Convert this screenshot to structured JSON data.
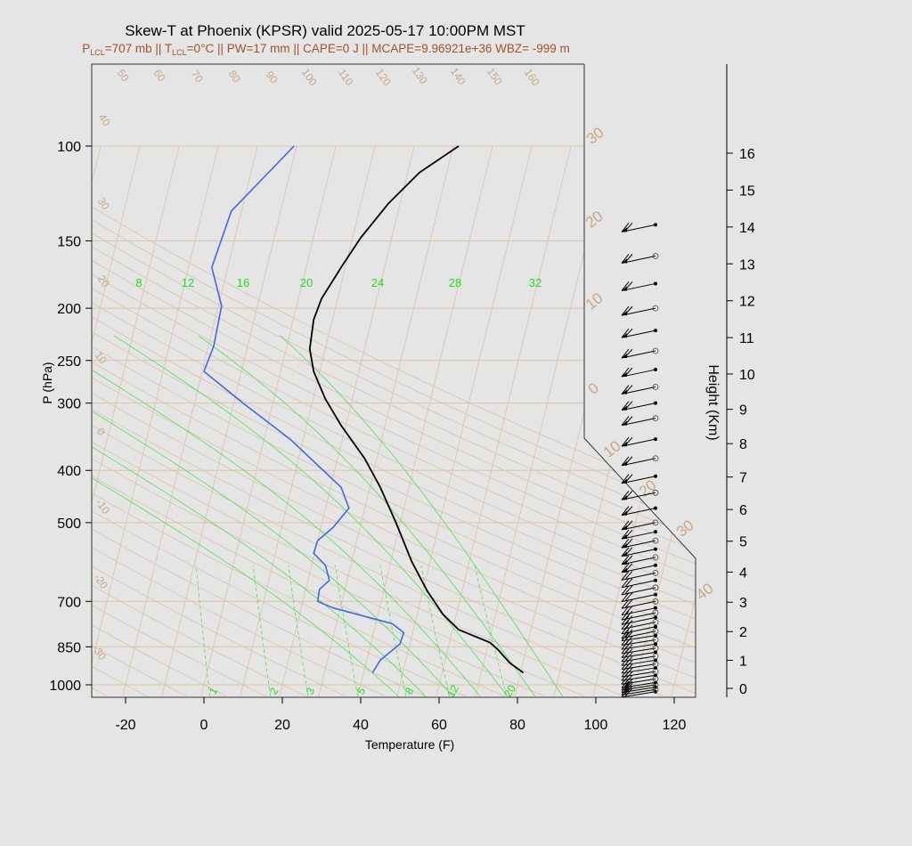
{
  "title": "Skew-T at Phoenix (KPSR) valid 2025-05-17 10:00PM MST",
  "subtitle": {
    "plcl_sym": "P",
    "plcl_sub": "LCL",
    "plcl_val": "=707 mb || ",
    "tlcl_sym": "T",
    "tlcl_sub": "LCL",
    "tlcl_val": "=0°C || PW=17 mm || CAPE=0 J || MCAPE=9.96921e+36 WBZ= -999 m"
  },
  "chart_data": {
    "type": "line",
    "title": "Skew-T at Phoenix (KPSR) valid 2025-05-17 10:00PM MST",
    "xlabel": "Temperature (F)",
    "ylabel": "P (hPa)",
    "y2label": "Height (Km)",
    "xlim": [
      -28,
      125
    ],
    "ylim": [
      1050,
      100
    ],
    "y_scale": "log",
    "x_ticks": [
      "-20",
      "0",
      "20",
      "40",
      "60",
      "80",
      "100",
      "120"
    ],
    "y_ticks": [
      "100",
      "150",
      "200",
      "250",
      "300",
      "400",
      "500",
      "700",
      "850",
      "1000"
    ],
    "height_ticks": [
      "0",
      "1",
      "2",
      "3",
      "4",
      "5",
      "6",
      "7",
      "8",
      "9",
      "10",
      "11",
      "12",
      "13",
      "14",
      "15",
      "16"
    ],
    "theta_labels": [
      "50",
      "60",
      "70",
      "80",
      "90",
      "100",
      "110",
      "120",
      "130",
      "140",
      "150",
      "160"
    ],
    "theta_left_labels": [
      "40",
      "30",
      "20",
      "10",
      "0",
      "-10",
      "-20",
      "-30"
    ],
    "temp_isotherm_labels": [
      "30",
      "20",
      "10",
      "0",
      "10",
      "20",
      "30",
      "40"
    ],
    "mixing_ratio_labels": [
      "8",
      "12",
      "16",
      "20",
      "24",
      "28",
      "32"
    ],
    "theta_e_labels": [
      "1",
      "2",
      "3",
      "5",
      "8",
      "12",
      "20"
    ],
    "series": [
      {
        "name": "temperature",
        "color": "#000000",
        "points": [
          [
            81.5,
            950
          ],
          [
            78,
            910
          ],
          [
            75,
            860
          ],
          [
            73,
            835
          ],
          [
            65,
            790
          ],
          [
            61,
            740
          ],
          [
            57,
            670
          ],
          [
            53,
            590
          ],
          [
            49,
            500
          ],
          [
            45,
            430
          ],
          [
            41,
            380
          ],
          [
            35,
            330
          ],
          [
            31,
            295
          ],
          [
            28,
            262
          ],
          [
            27,
            238
          ],
          [
            28,
            210
          ],
          [
            30,
            192
          ],
          [
            35,
            168
          ],
          [
            40,
            148
          ],
          [
            47,
            128
          ],
          [
            55,
            112
          ],
          [
            65,
            100
          ]
        ]
      },
      {
        "name": "dewpoint",
        "color": "#4169e1",
        "points": [
          [
            43,
            950
          ],
          [
            45,
            900
          ],
          [
            50,
            840
          ],
          [
            51,
            800
          ],
          [
            48,
            770
          ],
          [
            33,
            720
          ],
          [
            29,
            700
          ],
          [
            29.5,
            665
          ],
          [
            32,
            640
          ],
          [
            31,
            600
          ],
          [
            28,
            570
          ],
          [
            29,
            540
          ],
          [
            33,
            510
          ],
          [
            37,
            470
          ],
          [
            35,
            430
          ],
          [
            22,
            350
          ],
          [
            10,
            300
          ],
          [
            0,
            262
          ],
          [
            2.5,
            235
          ],
          [
            4.5,
            198
          ],
          [
            2,
            168
          ],
          [
            7,
            132
          ],
          [
            23,
            100
          ]
        ]
      }
    ],
    "wind_levels_hpa": [
      1030,
      1020,
      1010,
      1000,
      990,
      975,
      960,
      945,
      930,
      915,
      900,
      885,
      870,
      855,
      840,
      825,
      810,
      795,
      780,
      765,
      750,
      735,
      720,
      700,
      680,
      660,
      640,
      620,
      600,
      580,
      560,
      540,
      520,
      500,
      470,
      440,
      410,
      380,
      350,
      320,
      300,
      280,
      260,
      240,
      220,
      200,
      180,
      160,
      140
    ]
  }
}
